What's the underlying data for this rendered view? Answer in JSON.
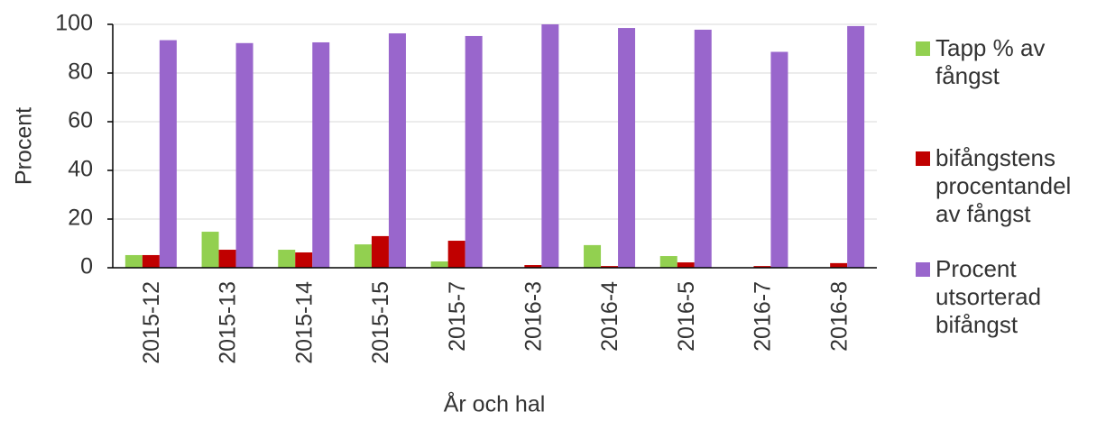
{
  "chart_data": {
    "type": "bar",
    "x_label": "År och hal",
    "y_label": "Procent",
    "categories": [
      "2015-12",
      "2015-13",
      "2015-14",
      "2015-15",
      "2015-7",
      "2016-3",
      "2016-4",
      "2016-5",
      "2016-7",
      "2016-8"
    ],
    "series": [
      {
        "name": "Tapp % av fångst",
        "color": "#92d050",
        "values": [
          5.2,
          14.8,
          7.4,
          9.6,
          2.6,
          0,
          9.3,
          4.8,
          0,
          0
        ]
      },
      {
        "name": "bifångstens procentandel av fångst",
        "color": "#c00000",
        "values": [
          5.2,
          7.4,
          6.3,
          13,
          11.1,
          1.1,
          0.7,
          2.2,
          0.7,
          1.9
        ]
      },
      {
        "name": "Procent utsorterad bifångst",
        "color": "#9966cc",
        "values": [
          93.5,
          92.3,
          92.6,
          96.3,
          95.2,
          100,
          98.5,
          97.8,
          88.7,
          99.3
        ]
      }
    ],
    "ylim": [
      0,
      100
    ],
    "yticks": [
      0,
      20,
      40,
      60,
      80,
      100
    ],
    "grid": true
  }
}
